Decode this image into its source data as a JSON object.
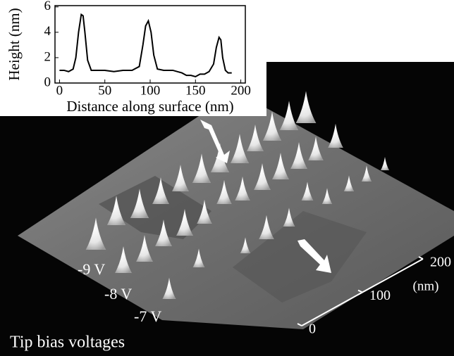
{
  "chart_data": {
    "type": "line",
    "xlabel": "Distance along surface (nm)",
    "ylabel": "Height (nm)",
    "x": [
      0,
      5,
      10,
      15,
      18,
      21,
      24,
      26,
      28,
      31,
      35,
      40,
      50,
      60,
      70,
      80,
      88,
      92,
      95,
      98,
      101,
      104,
      108,
      115,
      125,
      135,
      140,
      145,
      150,
      155,
      160,
      165,
      170,
      173,
      176,
      178,
      180,
      183,
      186,
      190
    ],
    "series": [
      {
        "color": "#000000",
        "values": [
          1.0,
          1.0,
          0.9,
          1.1,
          2.0,
          4.0,
          5.4,
          5.3,
          4.0,
          1.8,
          1.0,
          1.0,
          1.0,
          0.9,
          1.0,
          1.0,
          1.3,
          3.0,
          4.5,
          4.9,
          4.0,
          2.2,
          1.1,
          1.0,
          1.0,
          0.8,
          0.6,
          0.6,
          0.5,
          0.7,
          0.7,
          0.9,
          1.5,
          2.8,
          3.6,
          3.4,
          2.0,
          1.0,
          0.8,
          0.8
        ]
      }
    ],
    "xlim": [
      -5,
      205
    ],
    "xticks": [
      0,
      50,
      100,
      150,
      200
    ],
    "ylim": [
      0,
      6.1
    ],
    "yticks": [
      0,
      2,
      4,
      6
    ]
  },
  "image": {
    "bias_labels": [
      "-9 V",
      "-8 V",
      "-7 V"
    ],
    "caption": "Tip bias voltages",
    "scale_ticks": [
      0,
      100,
      200
    ],
    "scale_max": 200,
    "scale_unit": "(nm)"
  }
}
